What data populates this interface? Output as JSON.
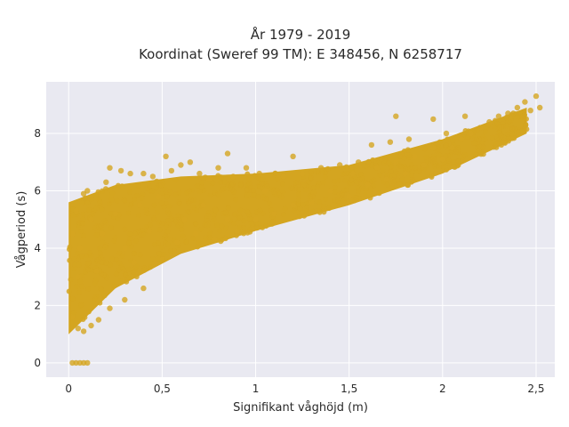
{
  "chart_data": {
    "type": "scatter",
    "title_lines": [
      "År 1979 - 2019",
      "Koordinat (Sweref 99 TM): E 348456, N 6258717"
    ],
    "xlabel": "Signifikant våghöjd (m)",
    "ylabel": "Vågperiod (s)",
    "xlim": [
      -0.12,
      2.6
    ],
    "ylim": [
      -0.5,
      9.8
    ],
    "xticks": [
      0,
      0.5,
      1,
      1.5,
      2,
      2.5
    ],
    "xtick_labels": [
      "0",
      "0,5",
      "1",
      "1,5",
      "2",
      "2,5"
    ],
    "yticks": [
      0,
      2,
      4,
      6,
      8
    ],
    "ytick_labels": [
      "0",
      "2",
      "4",
      "6",
      "8"
    ],
    "grid": true,
    "legend": "none",
    "colors": {
      "point": "#d4a520",
      "plot_bg": "#e9e9f1",
      "grid": "#ffffff"
    },
    "points": [
      [
        0.02,
        0.0
      ],
      [
        0.04,
        0.0
      ],
      [
        0.06,
        0.0
      ],
      [
        0.08,
        0.0
      ],
      [
        0.1,
        0.0
      ],
      [
        0.02,
        1.6
      ],
      [
        0.05,
        1.2
      ],
      [
        0.08,
        1.1
      ],
      [
        0.12,
        1.3
      ],
      [
        0.16,
        1.5
      ],
      [
        0.22,
        1.9
      ],
      [
        0.3,
        2.2
      ],
      [
        0.4,
        2.6
      ],
      [
        0.02,
        4.5
      ],
      [
        0.04,
        5.3
      ],
      [
        0.05,
        3.0
      ],
      [
        0.06,
        4.0
      ],
      [
        0.08,
        5.9
      ],
      [
        0.1,
        6.0
      ],
      [
        0.12,
        5.0
      ],
      [
        0.15,
        3.2
      ],
      [
        0.18,
        4.5
      ],
      [
        0.2,
        6.3
      ],
      [
        0.22,
        6.8
      ],
      [
        0.25,
        5.2
      ],
      [
        0.28,
        6.7
      ],
      [
        0.3,
        4.0
      ],
      [
        0.33,
        6.6
      ],
      [
        0.35,
        3.5
      ],
      [
        0.38,
        5.5
      ],
      [
        0.4,
        6.6
      ],
      [
        0.43,
        4.6
      ],
      [
        0.45,
        6.5
      ],
      [
        0.48,
        5.8
      ],
      [
        0.5,
        3.6
      ],
      [
        0.52,
        7.2
      ],
      [
        0.55,
        6.7
      ],
      [
        0.58,
        4.2
      ],
      [
        0.6,
        6.9
      ],
      [
        0.62,
        5.0
      ],
      [
        0.65,
        7.0
      ],
      [
        0.68,
        4.5
      ],
      [
        0.7,
        6.6
      ],
      [
        0.72,
        5.5
      ],
      [
        0.75,
        6.4
      ],
      [
        0.78,
        4.3
      ],
      [
        0.8,
        6.8
      ],
      [
        0.85,
        5.0
      ],
      [
        0.88,
        6.5
      ],
      [
        0.9,
        4.6
      ],
      [
        0.95,
        6.8
      ],
      [
        1.0,
        5.0
      ],
      [
        1.02,
        6.6
      ],
      [
        1.05,
        6.0
      ],
      [
        1.1,
        5.2
      ],
      [
        1.15,
        6.5
      ],
      [
        1.2,
        5.5
      ],
      [
        1.25,
        6.6
      ],
      [
        1.3,
        5.6
      ],
      [
        1.35,
        6.8
      ],
      [
        1.4,
        6.0
      ],
      [
        1.45,
        6.9
      ],
      [
        1.5,
        5.8
      ],
      [
        1.52,
        6.6
      ],
      [
        1.55,
        7.0
      ],
      [
        1.6,
        6.2
      ],
      [
        1.62,
        7.6
      ],
      [
        1.65,
        6.8
      ],
      [
        1.7,
        6.4
      ],
      [
        1.72,
        7.7
      ],
      [
        1.75,
        7.0
      ],
      [
        1.8,
        6.6
      ],
      [
        1.82,
        7.8
      ],
      [
        1.85,
        7.2
      ],
      [
        1.9,
        6.9
      ],
      [
        1.95,
        7.5
      ],
      [
        2.0,
        7.1
      ],
      [
        2.02,
        8.0
      ],
      [
        2.05,
        7.5
      ],
      [
        2.1,
        7.8
      ],
      [
        2.15,
        8.0
      ],
      [
        2.2,
        8.2
      ],
      [
        2.25,
        8.4
      ],
      [
        2.3,
        8.6
      ],
      [
        2.35,
        8.7
      ],
      [
        2.4,
        8.9
      ],
      [
        2.44,
        9.1
      ],
      [
        2.47,
        8.8
      ],
      [
        2.5,
        9.3
      ],
      [
        2.52,
        8.9
      ],
      [
        1.75,
        8.6
      ],
      [
        1.95,
        8.5
      ],
      [
        2.12,
        8.6
      ],
      [
        0.85,
        7.3
      ],
      [
        1.2,
        7.2
      ]
    ],
    "cloud_series": [
      {
        "name": "",
        "x_range": [
          0.0,
          0.25
        ],
        "y_min": [
          1.0,
          2.6
        ],
        "y_max": [
          5.6,
          6.2
        ]
      },
      {
        "name": "",
        "x_range": [
          0.25,
          0.6
        ],
        "y_min": [
          2.6,
          3.8
        ],
        "y_max": [
          6.2,
          6.5
        ]
      },
      {
        "name": "",
        "x_range": [
          0.6,
          1.0
        ],
        "y_min": [
          3.8,
          4.6
        ],
        "y_max": [
          6.5,
          6.6
        ]
      },
      {
        "name": "",
        "x_range": [
          1.0,
          1.5
        ],
        "y_min": [
          4.6,
          5.5
        ],
        "y_max": [
          6.6,
          6.9
        ]
      },
      {
        "name": "",
        "x_range": [
          1.5,
          2.0
        ],
        "y_min": [
          5.5,
          6.6
        ],
        "y_max": [
          6.9,
          7.8
        ]
      },
      {
        "name": "",
        "x_range": [
          2.0,
          2.45
        ],
        "y_min": [
          6.6,
          8.0
        ],
        "y_max": [
          7.8,
          8.9
        ]
      }
    ]
  }
}
